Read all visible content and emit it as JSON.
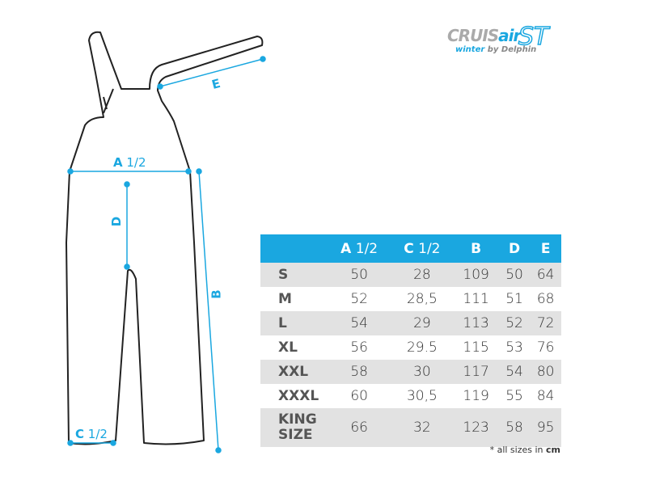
{
  "logo": {
    "line1": "CRUIS",
    "line1_accent": "air",
    "model": "ST",
    "line2": "winter",
    "line2_rest": " by Delphin"
  },
  "diagram_labels": {
    "a": "A",
    "a_frac": " 1/2",
    "b": "B",
    "c": "C",
    "c_frac": " 1/2",
    "d": "D",
    "e": "E"
  },
  "colors": {
    "accent": "#1aa7e0",
    "row_alt": "#e2e2e2",
    "outline": "#222222"
  },
  "table": {
    "headers": [
      {
        "letter": "A",
        "frac": " 1/2"
      },
      {
        "letter": "C",
        "frac": " 1/2"
      },
      {
        "letter": "B",
        "frac": ""
      },
      {
        "letter": "D",
        "frac": ""
      },
      {
        "letter": "E",
        "frac": ""
      }
    ],
    "rows": [
      {
        "size": "S",
        "values": [
          "50",
          "28",
          "109",
          "50",
          "64"
        ]
      },
      {
        "size": "M",
        "values": [
          "52",
          "28,5",
          "111",
          "51",
          "68"
        ]
      },
      {
        "size": "L",
        "values": [
          "54",
          "29",
          "113",
          "52",
          "72"
        ]
      },
      {
        "size": "XL",
        "values": [
          "56",
          "29.5",
          "115",
          "53",
          "76"
        ]
      },
      {
        "size": "XXL",
        "values": [
          "58",
          "30",
          "117",
          "54",
          "80"
        ]
      },
      {
        "size": "XXXL",
        "values": [
          "60",
          "30,5",
          "119",
          "55",
          "84"
        ]
      },
      {
        "size": "KING SIZE",
        "values": [
          "66",
          "32",
          "123",
          "58",
          "95"
        ]
      }
    ]
  },
  "note": {
    "text": "* all sizes in ",
    "unit": "cm"
  }
}
